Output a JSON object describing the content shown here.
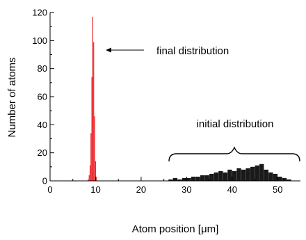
{
  "chart_data": {
    "type": "bar",
    "xlabel": "Atom position [μm]",
    "ylabel": "Number of atoms",
    "xlim": [
      0,
      55
    ],
    "ylim": [
      0,
      120
    ],
    "x_ticks": [
      0,
      10,
      20,
      30,
      40,
      50
    ],
    "y_ticks": [
      0,
      20,
      40,
      60,
      80,
      100,
      120
    ],
    "grid": false,
    "series": [
      {
        "color": "#e8141b",
        "x": [
          8.4,
          8.6,
          8.8,
          9.0,
          9.2,
          9.4,
          9.6,
          9.8,
          10.0,
          10.2
        ],
        "values": [
          1,
          4,
          11,
          34,
          74,
          117,
          99,
          46,
          14,
          3
        ]
      },
      {
        "color": "#1a1a1a",
        "x": [
          26.5,
          27.5,
          28.5,
          29.5,
          30.5,
          31.5,
          32.5,
          33.5,
          34.5,
          35.5,
          36.5,
          37.5,
          38.5,
          39.5,
          40.5,
          41.5,
          42.5,
          43.5,
          44.5,
          45.5,
          46.5,
          47.5,
          48.5,
          49.5,
          50.5,
          51.5,
          52.5
        ],
        "values": [
          1,
          2,
          1,
          2,
          2,
          3,
          3,
          4,
          4,
          5,
          6,
          7,
          6,
          8,
          7,
          9,
          8,
          9,
          10,
          11,
          12,
          8,
          6,
          5,
          3,
          2,
          1
        ]
      }
    ],
    "annotations": [
      {
        "text": "final distribution",
        "arrow": true
      },
      {
        "text": "initial distribution",
        "brace": true
      }
    ]
  }
}
